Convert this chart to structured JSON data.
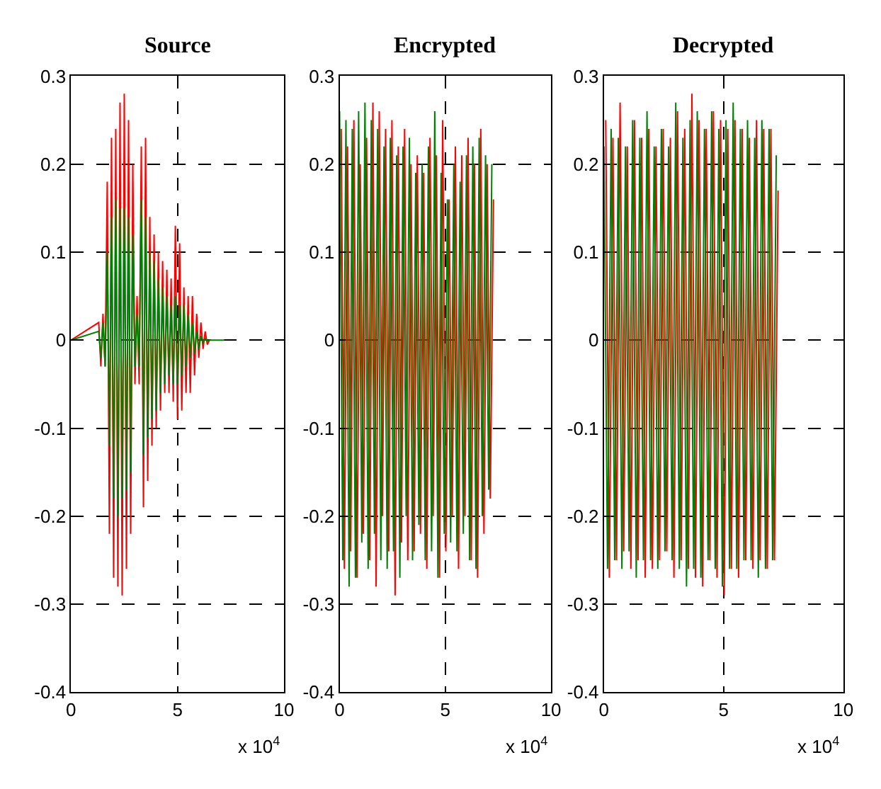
{
  "chart_data": [
    {
      "type": "line",
      "title": "Source",
      "xlim": [
        0,
        10
      ],
      "xticks": [
        0,
        5,
        10
      ],
      "ylim": [
        -0.4,
        0.3
      ],
      "yticks": [
        -0.4,
        -0.3,
        -0.2,
        -0.1,
        0,
        0.1,
        0.2,
        0.3
      ],
      "grid": true,
      "line_style": "dashed",
      "marker": "none",
      "annotations": [
        "x 10$^{4}$"
      ],
      "x": [
        0,
        1.3,
        1.4,
        1.5,
        1.6,
        1.7,
        1.8,
        1.9,
        2.0,
        2.1,
        2.2,
        2.3,
        2.4,
        2.5,
        2.6,
        2.7,
        2.8,
        2.9,
        3.0,
        3.1,
        3.2,
        3.3,
        3.4,
        3.5,
        3.6,
        3.7,
        3.8,
        3.9,
        4.0,
        4.1,
        4.2,
        4.3,
        4.4,
        4.5,
        4.6,
        4.7,
        4.8,
        4.9,
        5.0,
        5.1,
        5.2,
        5.3,
        5.4,
        5.5,
        5.6,
        5.7,
        5.8,
        5.9,
        6.0,
        6.1,
        6.2,
        6.3,
        6.4,
        6.5,
        7.2
      ],
      "series": [
        {
          "color": "#ff0000",
          "line_style": "solid",
          "values": [
            0,
            0.02,
            -0.03,
            0.03,
            -0.03,
            0.18,
            -0.22,
            0.23,
            -0.27,
            0.24,
            -0.28,
            0.27,
            -0.29,
            0.28,
            -0.26,
            0.25,
            -0.22,
            0.2,
            -0.05,
            0.05,
            -0.05,
            0.22,
            -0.19,
            0.23,
            -0.16,
            0.14,
            -0.12,
            0.12,
            -0.1,
            0.1,
            -0.08,
            0.09,
            -0.06,
            0.08,
            -0.06,
            0.07,
            -0.07,
            0.13,
            -0.09,
            0.11,
            -0.08,
            0.06,
            -0.06,
            0.05,
            -0.06,
            0.05,
            -0.04,
            0.03,
            -0.02,
            0.02,
            -0.01,
            0.01,
            -0.005,
            0,
            null
          ]
        },
        {
          "color": "#008000",
          "line_style": "solid",
          "values": [
            0,
            0.01,
            -0.02,
            0.02,
            -0.03,
            0.1,
            -0.12,
            0.14,
            -0.18,
            0.16,
            -0.2,
            0.15,
            -0.18,
            0.15,
            -0.17,
            0.14,
            -0.15,
            0.12,
            -0.03,
            0.03,
            -0.03,
            0.16,
            -0.13,
            0.14,
            -0.11,
            0.1,
            -0.09,
            0.09,
            -0.08,
            0.07,
            -0.06,
            0.06,
            -0.05,
            0.05,
            -0.04,
            0.04,
            -0.05,
            0.05,
            -0.05,
            0.04,
            -0.04,
            0.04,
            -0.03,
            0.03,
            -0.02,
            0.02,
            -0.015,
            0.01,
            -0.01,
            0.005,
            -0.003,
            0.002,
            -0.001,
            0,
            0
          ]
        }
      ]
    },
    {
      "type": "line",
      "title": "Encrypted",
      "xlim": [
        0,
        10
      ],
      "xticks": [
        0,
        5,
        10
      ],
      "ylim": [
        -0.4,
        0.3
      ],
      "yticks": [
        -0.4,
        -0.3,
        -0.2,
        -0.1,
        0,
        0.1,
        0.2,
        0.3
      ],
      "grid": true,
      "line_style": "dashed",
      "marker": "none",
      "annotations": [
        "x 10$^{4}$"
      ],
      "x": [
        0,
        0.15,
        0.3,
        0.45,
        0.6,
        0.75,
        0.9,
        1.05,
        1.2,
        1.35,
        1.5,
        1.65,
        1.8,
        1.95,
        2.1,
        2.25,
        2.4,
        2.55,
        2.7,
        2.85,
        3,
        3.15,
        3.3,
        3.45,
        3.6,
        3.75,
        3.9,
        4.05,
        4.2,
        4.35,
        4.5,
        4.65,
        4.8,
        4.95,
        5.1,
        5.25,
        5.4,
        5.55,
        5.7,
        5.85,
        6,
        6.15,
        6.3,
        6.45,
        6.6,
        6.75,
        6.9,
        7.05,
        7.2
      ],
      "series": [
        {
          "color": "#ff0000",
          "line_style": "solid",
          "x": [
            0.075,
            0.225,
            0.375,
            0.525,
            0.675,
            0.825,
            0.975,
            1.125,
            1.275,
            1.425,
            1.575,
            1.725,
            1.875,
            2.025,
            2.175,
            2.325,
            2.475,
            2.625,
            2.775,
            2.925,
            3.075,
            3.225,
            3.375,
            3.525,
            3.675,
            3.825,
            3.975,
            4.125,
            4.275,
            4.425,
            4.575,
            4.725,
            4.875,
            5.025,
            5.175,
            5.325,
            5.475,
            5.625,
            5.775,
            5.925,
            6.075,
            6.225,
            6.375,
            6.525,
            6.675,
            6.825,
            6.975,
            7.125,
            7.275
          ],
          "values": [
            0.24,
            -0.26,
            0.22,
            -0.24,
            0.25,
            -0.27,
            0.2,
            -0.22,
            0.23,
            -0.25,
            0.27,
            -0.28,
            0.26,
            -0.2,
            0.24,
            -0.24,
            0.25,
            -0.29,
            0.22,
            -0.23,
            0.24,
            -0.25,
            0.2,
            -0.24,
            0.21,
            -0.22,
            0.19,
            -0.26,
            0.23,
            -0.2,
            0.21,
            -0.27,
            0.25,
            -0.24,
            0.16,
            -0.2,
            0.22,
            -0.26,
            0.21,
            -0.2,
            0.23,
            -0.25,
            0.2,
            -0.27,
            0.24,
            -0.22,
            0.2,
            -0.18,
            0.16
          ]
        },
        {
          "color": "#008000",
          "line_style": "solid",
          "values": [
            0.26,
            -0.25,
            0.25,
            -0.28,
            0.24,
            -0.27,
            0.26,
            -0.23,
            0.27,
            -0.26,
            0.25,
            -0.22,
            0.24,
            -0.25,
            0.22,
            -0.26,
            0.23,
            -0.24,
            0.21,
            -0.27,
            0.22,
            -0.2,
            0.23,
            -0.25,
            0.19,
            -0.21,
            0.2,
            -0.25,
            0.22,
            -0.24,
            0.26,
            -0.27,
            0.19,
            -0.22,
            0.16,
            -0.23,
            0.2,
            -0.24,
            0.18,
            -0.22,
            0.21,
            -0.25,
            0.22,
            -0.26,
            0.23,
            -0.2,
            0.21,
            -0.17,
            0.2
          ]
        }
      ]
    },
    {
      "type": "line",
      "title": "Decrypted",
      "xlim": [
        0,
        10
      ],
      "xticks": [
        0,
        5,
        10
      ],
      "ylim": [
        -0.4,
        0.3
      ],
      "yticks": [
        -0.4,
        -0.3,
        -0.2,
        -0.1,
        0,
        0.1,
        0.2,
        0.3
      ],
      "grid": true,
      "line_style": "dashed",
      "marker": "none",
      "annotations": [
        "x 10$^{4}$"
      ],
      "x": [
        0,
        0.15,
        0.3,
        0.45,
        0.6,
        0.75,
        0.9,
        1.05,
        1.2,
        1.35,
        1.5,
        1.65,
        1.8,
        1.95,
        2.1,
        2.25,
        2.4,
        2.55,
        2.7,
        2.85,
        3,
        3.15,
        3.3,
        3.45,
        3.6,
        3.75,
        3.9,
        4.05,
        4.2,
        4.35,
        4.5,
        4.65,
        4.8,
        4.95,
        5.1,
        5.25,
        5.4,
        5.55,
        5.7,
        5.85,
        6,
        6.15,
        6.3,
        6.45,
        6.6,
        6.75,
        6.9,
        7.05,
        7.2
      ],
      "series": [
        {
          "color": "#ff0000",
          "line_style": "solid",
          "x": [
            0.075,
            0.225,
            0.375,
            0.525,
            0.675,
            0.825,
            0.975,
            1.125,
            1.275,
            1.425,
            1.575,
            1.725,
            1.875,
            2.025,
            2.175,
            2.325,
            2.475,
            2.625,
            2.775,
            2.925,
            3.075,
            3.225,
            3.375,
            3.525,
            3.675,
            3.825,
            3.975,
            4.125,
            4.275,
            4.425,
            4.575,
            4.725,
            4.875,
            5.025,
            5.175,
            5.325,
            5.475,
            5.625,
            5.775,
            5.925,
            6.075,
            6.225,
            6.375,
            6.525,
            6.675,
            6.825,
            6.975,
            7.125,
            7.275
          ],
          "values": [
            0.25,
            -0.27,
            0.23,
            -0.25,
            0.27,
            -0.24,
            0.22,
            -0.26,
            0.25,
            -0.25,
            0.23,
            -0.27,
            0.24,
            -0.26,
            0.22,
            -0.25,
            0.24,
            -0.24,
            0.23,
            -0.27,
            0.26,
            -0.25,
            0.24,
            -0.26,
            0.28,
            -0.27,
            0.25,
            -0.28,
            0.24,
            -0.25,
            0.26,
            -0.27,
            0.25,
            -0.29,
            0.24,
            -0.26,
            0.25,
            -0.27,
            0.24,
            -0.25,
            0.23,
            -0.26,
            0.25,
            -0.25,
            0.24,
            -0.26,
            0.24,
            -0.25,
            0.17
          ]
        },
        {
          "color": "#008000",
          "line_style": "solid",
          "values": [
            0.22,
            -0.26,
            0.24,
            -0.25,
            0.23,
            -0.26,
            0.22,
            -0.24,
            0.25,
            -0.27,
            0.23,
            -0.25,
            0.26,
            -0.25,
            0.22,
            -0.26,
            0.24,
            -0.24,
            0.22,
            -0.25,
            0.27,
            -0.26,
            0.23,
            -0.28,
            0.25,
            -0.26,
            0.26,
            -0.27,
            0.24,
            -0.25,
            0.26,
            -0.26,
            0.24,
            -0.28,
            0.25,
            -0.26,
            0.27,
            -0.26,
            0.24,
            -0.25,
            0.25,
            -0.25,
            0.23,
            -0.27,
            0.25,
            -0.26,
            0.24,
            -0.25,
            0.21
          ]
        }
      ]
    }
  ]
}
